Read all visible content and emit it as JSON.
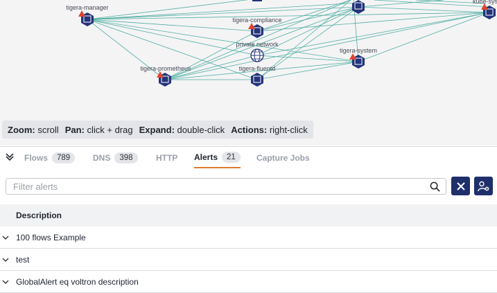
{
  "graph": {
    "nodes": {
      "tigera_manager": "tigera-manager",
      "tigera_compliance": "tigera-compliance",
      "private_network": "private network",
      "tigera_system": "tigera-system",
      "tigera_prometheus": "tigera-prometheus",
      "tigera_fluentd": "tigera-fluentd",
      "kube_system": "kube-sys"
    },
    "node_color": "#24337a",
    "warning_color": "#e0452b",
    "edge_color": "#4faea2"
  },
  "hints": [
    {
      "key": "Zoom:",
      "value": "scroll"
    },
    {
      "key": "Pan:",
      "value": "click + drag"
    },
    {
      "key": "Expand:",
      "value": "double-click"
    },
    {
      "key": "Actions:",
      "value": "right-click"
    }
  ],
  "tabs": [
    {
      "label": "Flows",
      "count": "789"
    },
    {
      "label": "DNS",
      "count": "398"
    },
    {
      "label": "HTTP",
      "count": ""
    },
    {
      "label": "Alerts",
      "count": "21"
    },
    {
      "label": "Capture Jobs",
      "count": ""
    }
  ],
  "filter": {
    "placeholder": "Filter alerts",
    "value": ""
  },
  "table": {
    "header": "Description",
    "rows": [
      "100 flows Example",
      "test",
      "GlobalAlert eq voltron description"
    ]
  },
  "colors": {
    "accent": "#e07a2d",
    "button": "#1f2f6a"
  }
}
